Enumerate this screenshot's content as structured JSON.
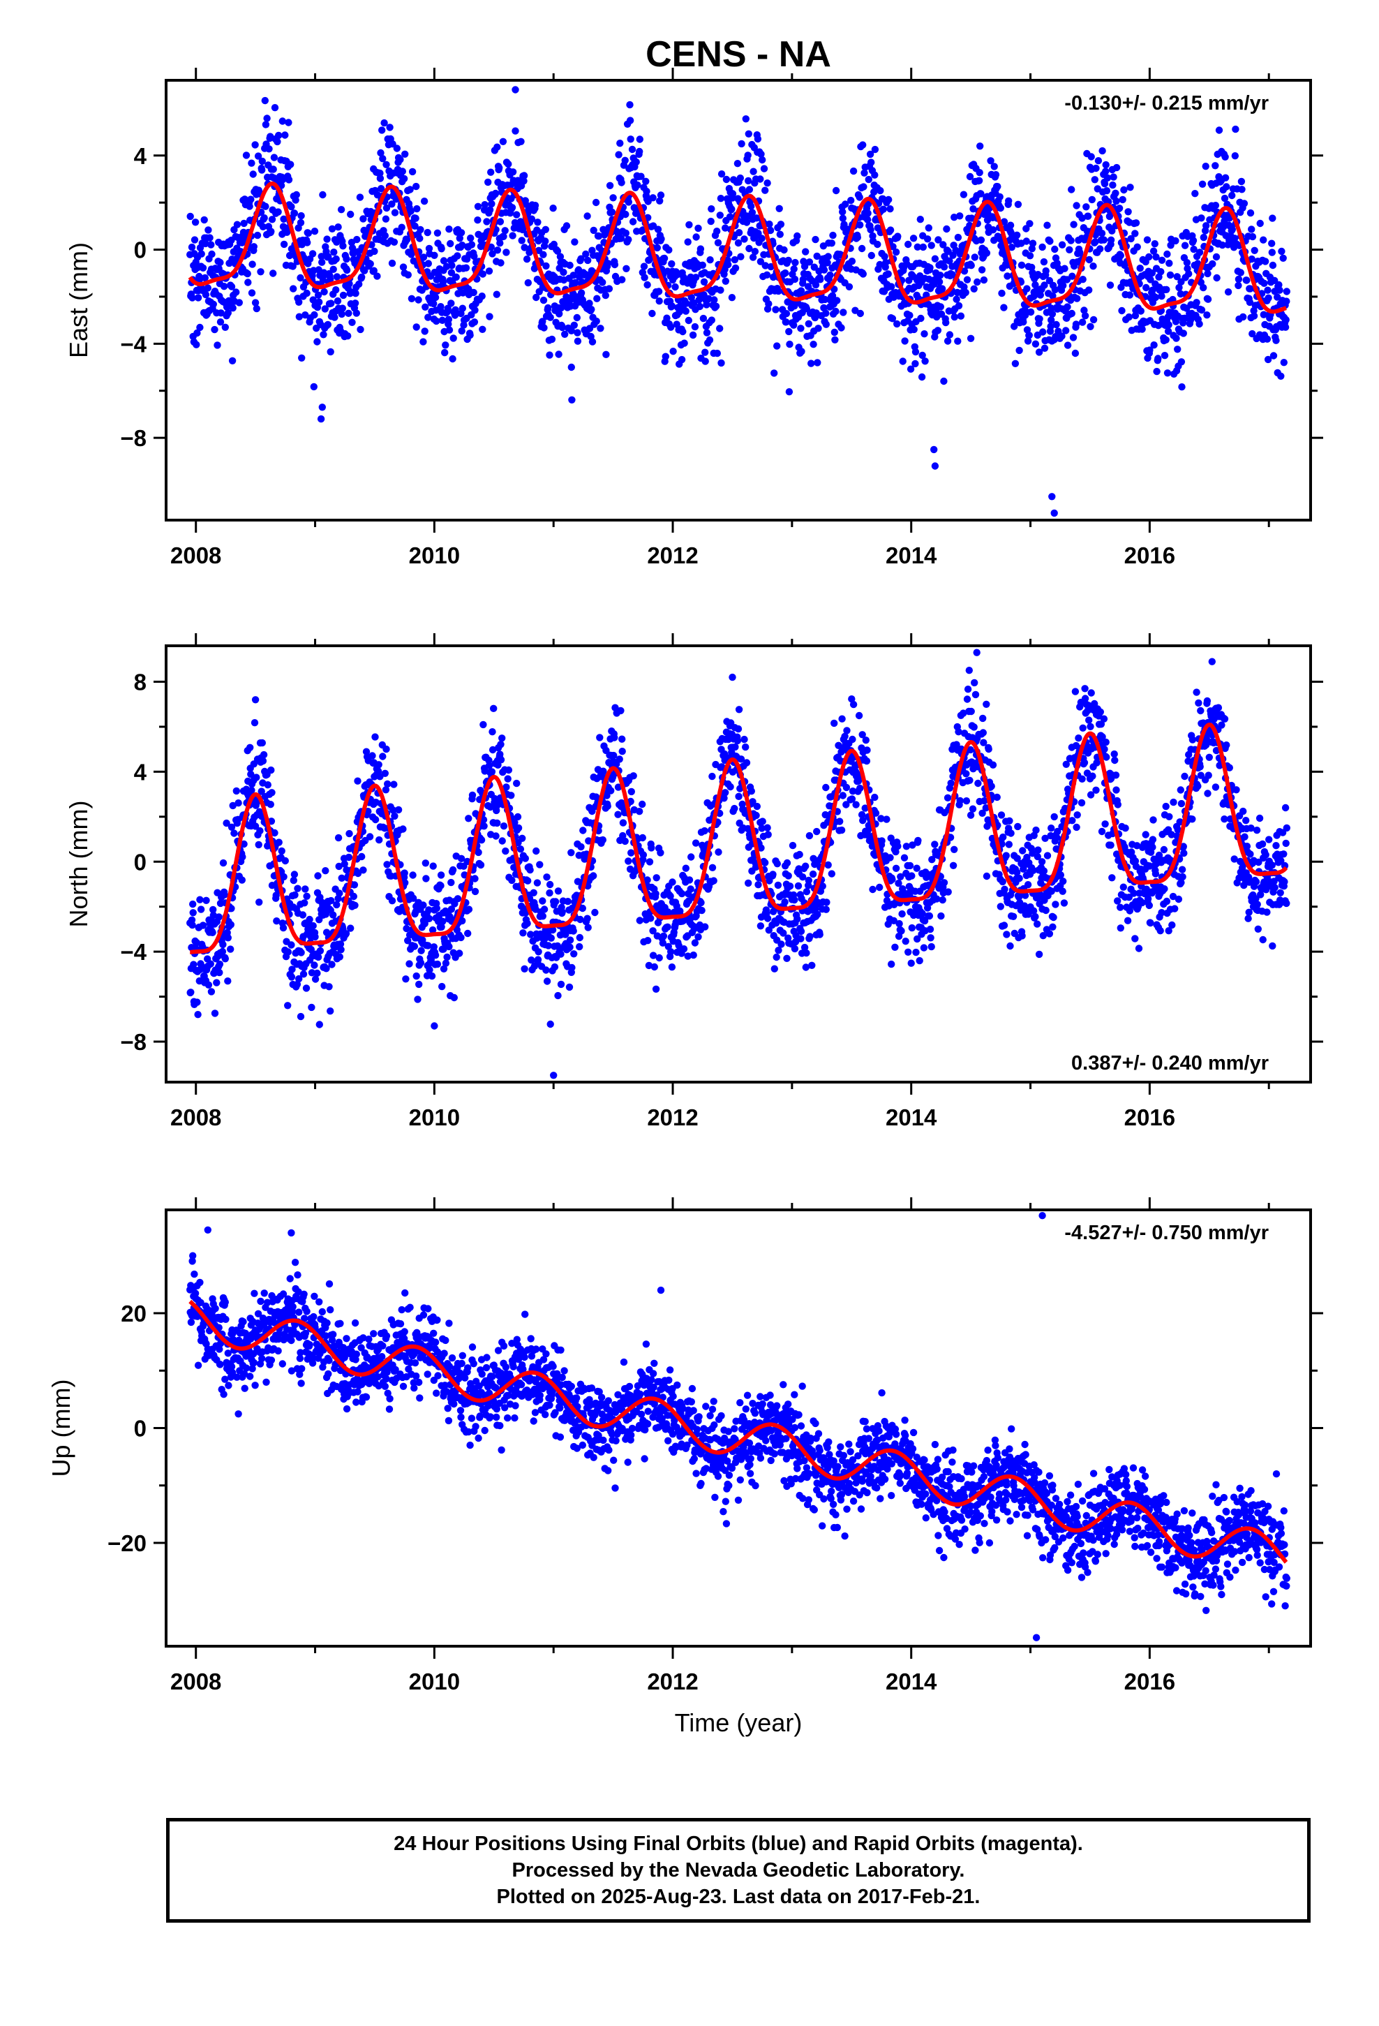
{
  "title": "CENS - NA",
  "caption": {
    "line1": "24 Hour Positions Using Final Orbits (blue) and Rapid Orbits (magenta).",
    "line2": "Processed by the Nevada Geodetic Laboratory.",
    "line3": "Plotted on 2025-Aug-23. Last data on 2017-Feb-21."
  },
  "colors": {
    "points": "#0000ff",
    "model": "#ff0000",
    "frame": "#000000"
  },
  "chart_data": [
    {
      "type": "scatter",
      "ylabel": "East (mm)",
      "xlabel": "",
      "rate_label": "-0.130+/- 0.215 mm/yr",
      "rate_label_position": "top-right",
      "xlim": [
        2007.75,
        2017.35
      ],
      "ylim": [
        -11.5,
        7.2
      ],
      "x_ticks": [
        2008,
        2010,
        2012,
        2014,
        2016
      ],
      "x_tick_labels": [
        "2008",
        "2010",
        "2012",
        "2014",
        "2016"
      ],
      "y_ticks": [
        4,
        0,
        -4,
        -8
      ],
      "y_tick_labels": [
        "4",
        "0",
        "−4",
        "−8"
      ],
      "series": [
        {
          "kind": "points",
          "x_range": [
            2007.95,
            2017.15
          ],
          "model": {
            "offset": 0.2,
            "rate": -0.13,
            "annual_amp": 2.1,
            "annual_phase_year": 0.63,
            "semi_amp": 0.6,
            "semi_phase_year": 0.15
          },
          "noise_sd": 1.4,
          "outliers": [
            [
              2009.05,
              -7.2
            ],
            [
              2009.06,
              -6.7
            ],
            [
              2014.2,
              -9.2
            ],
            [
              2014.19,
              -8.5
            ],
            [
              2015.2,
              -11.2
            ],
            [
              2015.18,
              -10.5
            ],
            [
              2010.68,
              6.8
            ],
            [
              2011.15,
              -5.0
            ]
          ]
        },
        {
          "kind": "model-curve",
          "model": {
            "offset": 0.2,
            "rate": -0.13,
            "annual_amp": 2.1,
            "annual_phase_year": 0.63,
            "semi_amp": 0.6,
            "semi_phase_year": 0.15
          },
          "x_range": [
            2007.95,
            2017.15
          ]
        }
      ]
    },
    {
      "type": "scatter",
      "ylabel": "North (mm)",
      "xlabel": "",
      "rate_label": "0.387+/- 0.240 mm/yr",
      "rate_label_position": "bottom-right",
      "xlim": [
        2007.75,
        2017.35
      ],
      "ylim": [
        -9.8,
        9.6
      ],
      "x_ticks": [
        2008,
        2010,
        2012,
        2014,
        2016
      ],
      "x_tick_labels": [
        "2008",
        "2010",
        "2012",
        "2014",
        "2016"
      ],
      "y_ticks": [
        8,
        4,
        0,
        -4,
        -8
      ],
      "y_tick_labels": [
        "8",
        "4",
        "0",
        "−4",
        "−8"
      ],
      "series": [
        {
          "kind": "points",
          "x_range": [
            2007.95,
            2017.15
          ],
          "model": {
            "offset": -1.5,
            "rate": 0.387,
            "annual_amp": 3.4,
            "annual_phase_year": 0.5,
            "semi_amp": 0.9,
            "semi_phase_year": 0.0
          },
          "noise_sd": 1.3,
          "outliers": [
            [
              2011.0,
              -9.5
            ],
            [
              2014.55,
              9.3
            ],
            [
              2012.5,
              8.2
            ],
            [
              2008.5,
              7.2
            ],
            [
              2010.0,
              -7.3
            ]
          ]
        },
        {
          "kind": "model-curve",
          "model": {
            "offset": -1.5,
            "rate": 0.387,
            "annual_amp": 3.4,
            "annual_phase_year": 0.5,
            "semi_amp": 0.9,
            "semi_phase_year": 0.0
          },
          "x_range": [
            2007.95,
            2017.15
          ]
        }
      ]
    },
    {
      "type": "scatter",
      "ylabel": "Up (mm)",
      "xlabel": "Time (year)",
      "rate_label": "-4.527+/- 0.750 mm/yr",
      "rate_label_position": "top-right",
      "xlim": [
        2007.75,
        2017.35
      ],
      "ylim": [
        -38,
        38
      ],
      "x_ticks": [
        2008,
        2010,
        2012,
        2014,
        2016
      ],
      "x_tick_labels": [
        "2008",
        "2010",
        "2012",
        "2014",
        "2016"
      ],
      "y_ticks": [
        20,
        0,
        -20
      ],
      "y_tick_labels": [
        "20",
        "0",
        "−20"
      ],
      "series": [
        {
          "kind": "points",
          "x_range": [
            2007.95,
            2017.15
          ],
          "model": {
            "offset": 19.0,
            "rate": -4.527,
            "annual_amp": 3.5,
            "annual_phase_year": 0.85,
            "semi_amp": 0.0,
            "semi_phase_year": 0.0
          },
          "noise_sd": 3.6,
          "outliers": [
            [
              2008.1,
              34.5
            ],
            [
              2015.05,
              -36.5
            ],
            [
              2015.1,
              37.0
            ],
            [
              2008.8,
              34.0
            ],
            [
              2011.9,
              24.0
            ]
          ]
        },
        {
          "kind": "model-curve",
          "model": {
            "offset": 19.0,
            "rate": -4.527,
            "annual_amp": 3.5,
            "annual_phase_year": 0.85,
            "semi_amp": 0.0,
            "semi_phase_year": 0.0
          },
          "x_range": [
            2007.95,
            2017.15
          ]
        }
      ]
    }
  ]
}
